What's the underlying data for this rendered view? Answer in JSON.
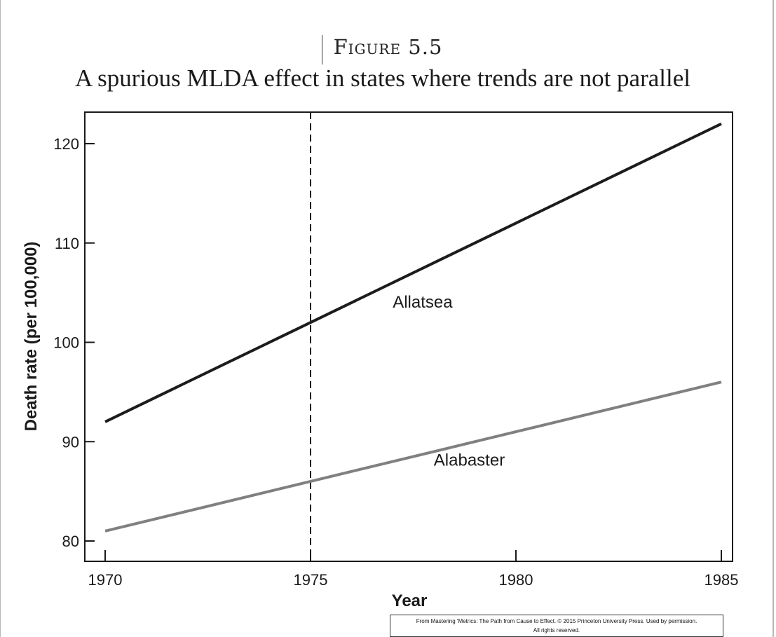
{
  "figure": {
    "label": "Figure 5.5",
    "subtitle": "A spurious MLDA effect in states where trends are not parallel"
  },
  "credit": {
    "line1": "From Mastering 'Metrics: The Path from Cause to Effect. © 2015 Princeton University Press. Used by permission.",
    "line2": "All rights reserved."
  },
  "chart_data": {
    "type": "line",
    "title": "A spurious MLDA effect in states where trends are not parallel",
    "xlabel": "Year",
    "ylabel": "Death rate (per 100,000)",
    "xlim": [
      1969.5,
      1985.5
    ],
    "ylim": [
      78,
      123
    ],
    "xticks": [
      1970,
      1975,
      1980,
      1985
    ],
    "yticks": [
      80,
      90,
      100,
      110,
      120
    ],
    "grid": false,
    "vline": {
      "x": 1975,
      "style": "dashed",
      "color": "#111111"
    },
    "series": [
      {
        "name": "Allatsea",
        "x": [
          1970,
          1975,
          1980,
          1985
        ],
        "values": [
          92,
          102,
          112,
          122
        ],
        "color": "#1c1c1c"
      },
      {
        "name": "Alabaster",
        "x": [
          1970,
          1975,
          1980,
          1985
        ],
        "values": [
          81,
          86,
          91,
          96
        ],
        "color": "#808080"
      }
    ],
    "annotations": [
      {
        "text": "Allatsea",
        "x": 1977.0,
        "y": 103.5
      },
      {
        "text": "Alabaster",
        "x": 1978.0,
        "y": 87.6
      }
    ]
  }
}
